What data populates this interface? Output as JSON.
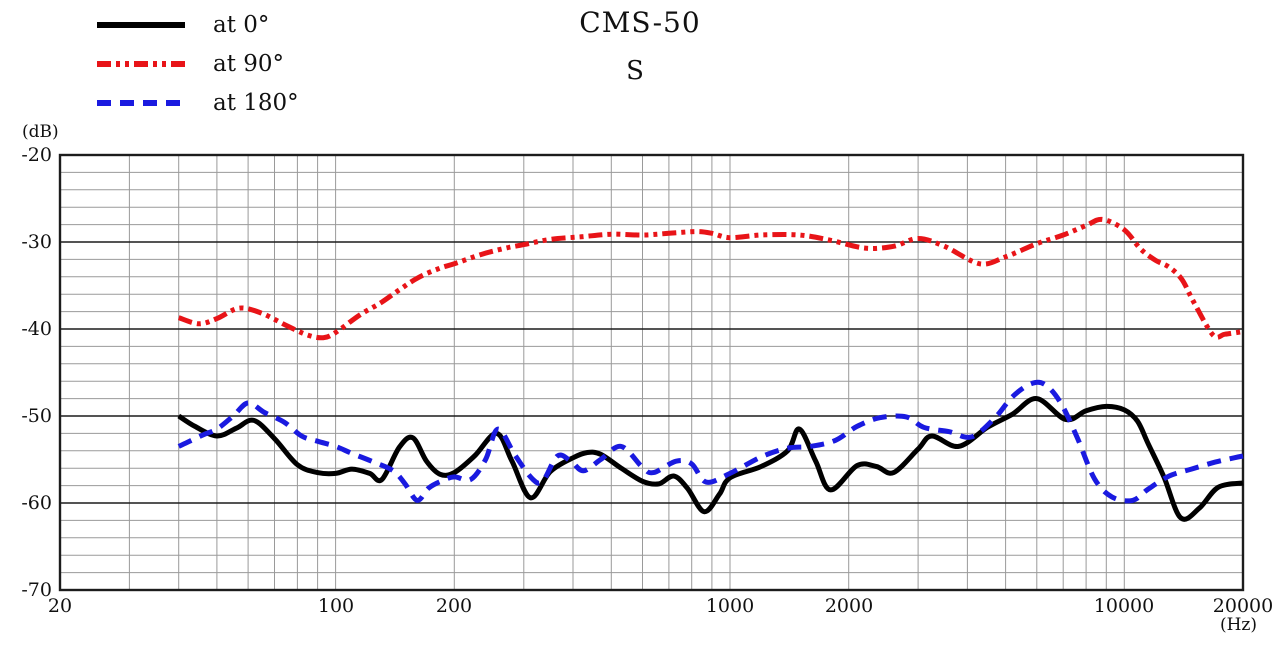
{
  "page": {
    "background": "#ffffff"
  },
  "chart_data": {
    "type": "line",
    "x_scale": "log",
    "title": "CMS-50",
    "subtitle": "S",
    "xlabel": "(Hz)",
    "ylabel": "(dB)",
    "xlim": [
      20,
      20000
    ],
    "ylim": [
      -70,
      -20
    ],
    "x_ticks": [
      20,
      100,
      200,
      1000,
      2000,
      10000,
      20000
    ],
    "y_ticks": [
      -20,
      -30,
      -40,
      -50,
      -60,
      -70
    ],
    "grid": {
      "minor_db_step": 2,
      "minor_color": "#9a9a9a",
      "major_color": "#1c1c1c",
      "border_color": "#1c1c1c"
    },
    "legend_position": "top-left",
    "series": [
      {
        "name": "at 0°",
        "color": "#000000",
        "dash": "solid",
        "stroke_width": 5,
        "points": [
          [
            40,
            -50
          ],
          [
            44,
            -51.2
          ],
          [
            50,
            -52.3
          ],
          [
            56,
            -51.4
          ],
          [
            62,
            -50.5
          ],
          [
            70,
            -52.6
          ],
          [
            80,
            -55.6
          ],
          [
            90,
            -56.5
          ],
          [
            100,
            -56.6
          ],
          [
            110,
            -56.1
          ],
          [
            122,
            -56.6
          ],
          [
            131,
            -57.3
          ],
          [
            145,
            -53.6
          ],
          [
            157,
            -52.5
          ],
          [
            170,
            -55.2
          ],
          [
            184,
            -56.7
          ],
          [
            200,
            -56.5
          ],
          [
            225,
            -54.6
          ],
          [
            256,
            -52
          ],
          [
            280,
            -55.2
          ],
          [
            312,
            -59.4
          ],
          [
            350,
            -56.4
          ],
          [
            400,
            -54.8
          ],
          [
            435,
            -54.2
          ],
          [
            470,
            -54.4
          ],
          [
            530,
            -56
          ],
          [
            600,
            -57.5
          ],
          [
            660,
            -57.8
          ],
          [
            720,
            -56.9
          ],
          [
            780,
            -58.3
          ],
          [
            860,
            -61
          ],
          [
            940,
            -59
          ],
          [
            1000,
            -57.1
          ],
          [
            1200,
            -55.8
          ],
          [
            1400,
            -54
          ],
          [
            1500,
            -51.5
          ],
          [
            1650,
            -55.2
          ],
          [
            1800,
            -58.5
          ],
          [
            2100,
            -55.7
          ],
          [
            2350,
            -55.8
          ],
          [
            2600,
            -56.5
          ],
          [
            3000,
            -53.8
          ],
          [
            3250,
            -52.3
          ],
          [
            3800,
            -53.5
          ],
          [
            4500,
            -51.3
          ],
          [
            5200,
            -49.8
          ],
          [
            6000,
            -48
          ],
          [
            7100,
            -50.4
          ],
          [
            8000,
            -49.4
          ],
          [
            9000,
            -48.9
          ],
          [
            10000,
            -49.3
          ],
          [
            10800,
            -50.6
          ],
          [
            11500,
            -53.2
          ],
          [
            12600,
            -57
          ],
          [
            13900,
            -61.7
          ],
          [
            15500,
            -60.6
          ],
          [
            17300,
            -58.2
          ],
          [
            20000,
            -57.7
          ]
        ]
      },
      {
        "name": "at 90°",
        "color": "#e81418",
        "dash": "dash-dot-dot",
        "stroke_width": 5,
        "points": [
          [
            40,
            -38.7
          ],
          [
            45,
            -39.4
          ],
          [
            50,
            -38.8
          ],
          [
            57,
            -37.6
          ],
          [
            65,
            -38.2
          ],
          [
            75,
            -39.6
          ],
          [
            85,
            -40.7
          ],
          [
            93,
            -41
          ],
          [
            100,
            -40.4
          ],
          [
            115,
            -38.4
          ],
          [
            130,
            -37
          ],
          [
            145,
            -35.5
          ],
          [
            162,
            -34.1
          ],
          [
            184,
            -33
          ],
          [
            200,
            -32.5
          ],
          [
            235,
            -31.4
          ],
          [
            270,
            -30.7
          ],
          [
            300,
            -30.3
          ],
          [
            350,
            -29.7
          ],
          [
            420,
            -29.4
          ],
          [
            500,
            -29.1
          ],
          [
            600,
            -29.2
          ],
          [
            700,
            -29
          ],
          [
            820,
            -28.8
          ],
          [
            900,
            -29
          ],
          [
            1000,
            -29.5
          ],
          [
            1200,
            -29.2
          ],
          [
            1500,
            -29.2
          ],
          [
            1800,
            -29.8
          ],
          [
            2200,
            -30.7
          ],
          [
            2600,
            -30.5
          ],
          [
            3000,
            -29.6
          ],
          [
            3500,
            -30.5
          ],
          [
            4300,
            -32.5
          ],
          [
            5000,
            -31.7
          ],
          [
            6000,
            -30.2
          ],
          [
            7000,
            -29.2
          ],
          [
            8000,
            -28.1
          ],
          [
            8800,
            -27.4
          ],
          [
            10000,
            -28.6
          ],
          [
            11000,
            -30.8
          ],
          [
            12000,
            -32.1
          ],
          [
            13000,
            -32.9
          ],
          [
            14000,
            -34.3
          ],
          [
            15000,
            -36.9
          ],
          [
            16800,
            -40.7
          ],
          [
            18000,
            -40.6
          ],
          [
            20000,
            -40.3
          ]
        ]
      },
      {
        "name": "at 180°",
        "color": "#1a1ae0",
        "dash": "dashed",
        "stroke_width": 5,
        "points": [
          [
            40,
            -53.5
          ],
          [
            46,
            -52.2
          ],
          [
            50,
            -51.5
          ],
          [
            55,
            -50
          ],
          [
            60,
            -48.5
          ],
          [
            66,
            -49.6
          ],
          [
            74,
            -50.7
          ],
          [
            82,
            -52.3
          ],
          [
            90,
            -52.9
          ],
          [
            100,
            -53.5
          ],
          [
            110,
            -54.3
          ],
          [
            125,
            -55.3
          ],
          [
            140,
            -56.3
          ],
          [
            150,
            -57.8
          ],
          [
            161,
            -59.7
          ],
          [
            172,
            -58.3
          ],
          [
            185,
            -57.5
          ],
          [
            200,
            -57
          ],
          [
            220,
            -57.3
          ],
          [
            240,
            -55
          ],
          [
            258,
            -51.5
          ],
          [
            285,
            -54.5
          ],
          [
            315,
            -57.2
          ],
          [
            335,
            -57.5
          ],
          [
            365,
            -54.6
          ],
          [
            395,
            -55.2
          ],
          [
            425,
            -56.3
          ],
          [
            470,
            -55
          ],
          [
            530,
            -53.5
          ],
          [
            600,
            -55.9
          ],
          [
            640,
            -56.5
          ],
          [
            730,
            -55.2
          ],
          [
            800,
            -55.5
          ],
          [
            870,
            -57.6
          ],
          [
            1000,
            -56.6
          ],
          [
            1200,
            -54.7
          ],
          [
            1400,
            -53.7
          ],
          [
            1600,
            -53.5
          ],
          [
            1850,
            -52.8
          ],
          [
            2100,
            -51.2
          ],
          [
            2400,
            -50.2
          ],
          [
            2800,
            -50.1
          ],
          [
            3100,
            -51.3
          ],
          [
            3600,
            -51.8
          ],
          [
            4100,
            -52.4
          ],
          [
            4700,
            -50.2
          ],
          [
            5200,
            -47.8
          ],
          [
            5800,
            -46.3
          ],
          [
            6300,
            -46.4
          ],
          [
            6900,
            -48.5
          ],
          [
            7600,
            -52.5
          ],
          [
            8400,
            -57.2
          ],
          [
            9300,
            -59.3
          ],
          [
            10500,
            -59.7
          ],
          [
            11500,
            -58.4
          ],
          [
            13000,
            -56.9
          ],
          [
            14800,
            -56.1
          ],
          [
            17000,
            -55.3
          ],
          [
            19000,
            -54.8
          ],
          [
            20000,
            -54.6
          ]
        ]
      }
    ]
  }
}
